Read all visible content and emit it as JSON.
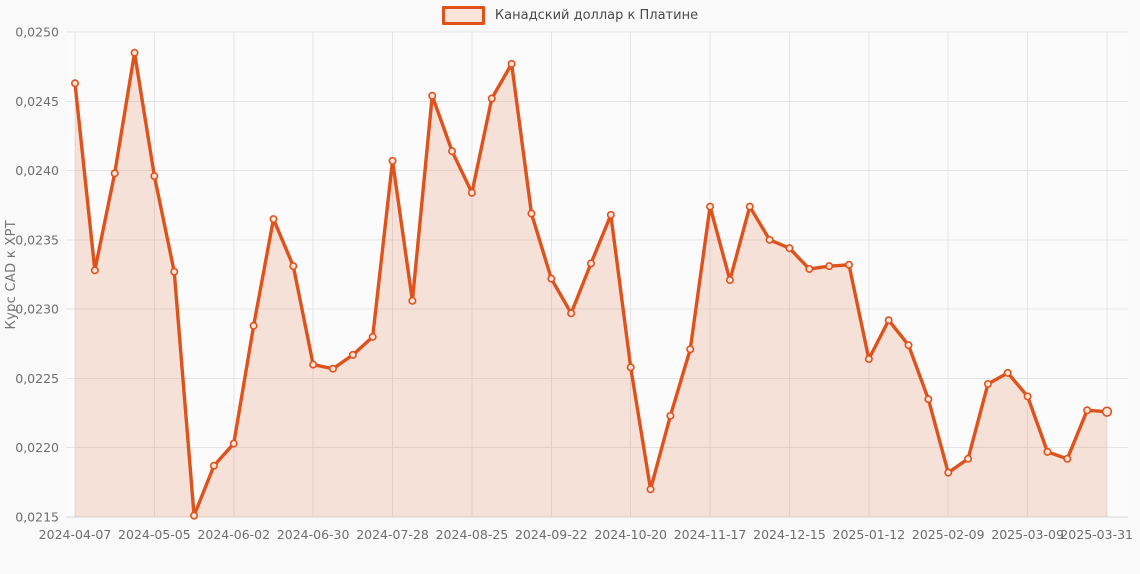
{
  "legend": {
    "label": "Канадский доллар к Платине"
  },
  "y_axis": {
    "title": "Курс CAD к XPT"
  },
  "colors": {
    "line": "#E0521C",
    "area_fill": "rgba(224,82,28,0.15)",
    "marker_fill": "#FAE4D9",
    "grid": "#E4E4E4",
    "axis_line": "#D8D8D8",
    "tick_text": "#6E6E6E",
    "axis_title_text": "#757575",
    "legend_text": "#4A4A4A",
    "page_bg": "#F9F9F9",
    "plot_bg": "#FBFBFB"
  },
  "chart_data": {
    "type": "area",
    "title": "",
    "xlabel": "",
    "ylabel": "Курс CAD к XPT",
    "grid": true,
    "legend_position": "top-center",
    "ylim": [
      0.0215,
      0.025
    ],
    "y_ticks": [
      {
        "value": 0.0215,
        "label": "0,0215"
      },
      {
        "value": 0.022,
        "label": "0,0220"
      },
      {
        "value": 0.0225,
        "label": "0,0225"
      },
      {
        "value": 0.023,
        "label": "0,0230"
      },
      {
        "value": 0.0235,
        "label": "0,0235"
      },
      {
        "value": 0.024,
        "label": "0,0240"
      },
      {
        "value": 0.0245,
        "label": "0,0245"
      },
      {
        "value": 0.025,
        "label": "0,0250"
      }
    ],
    "x_ticks": [
      {
        "index": 0,
        "label": "2024-04-07"
      },
      {
        "index": 4,
        "label": "2024-05-05"
      },
      {
        "index": 8,
        "label": "2024-06-02"
      },
      {
        "index": 12,
        "label": "2024-06-30"
      },
      {
        "index": 16,
        "label": "2024-07-28"
      },
      {
        "index": 20,
        "label": "2024-08-25"
      },
      {
        "index": 24,
        "label": "2024-09-22"
      },
      {
        "index": 28,
        "label": "2024-10-20"
      },
      {
        "index": 32,
        "label": "2024-11-17"
      },
      {
        "index": 36,
        "label": "2024-12-15"
      },
      {
        "index": 40,
        "label": "2025-01-12"
      },
      {
        "index": 44,
        "label": "2025-02-09"
      },
      {
        "index": 48,
        "label": "2025-03-09"
      },
      {
        "index": 52,
        "label": "2025-03-31"
      }
    ],
    "series": [
      {
        "name": "Канадский доллар к Платине",
        "values": [
          0.02463,
          0.02328,
          0.02398,
          0.02485,
          0.02396,
          0.02327,
          0.02151,
          0.02187,
          0.02203,
          0.02288,
          0.02365,
          0.02331,
          0.0226,
          0.02257,
          0.02267,
          0.0228,
          0.02407,
          0.02306,
          0.02454,
          0.02414,
          0.02384,
          0.02452,
          0.02477,
          0.02369,
          0.02322,
          0.02297,
          0.02333,
          0.02368,
          0.02258,
          0.0217,
          0.02223,
          0.02271,
          0.02374,
          0.02321,
          0.02374,
          0.0235,
          0.02344,
          0.02329,
          0.02331,
          0.02332,
          0.02264,
          0.02292,
          0.02274,
          0.02235,
          0.02182,
          0.02192,
          0.02246,
          0.02254,
          0.02237,
          0.02197,
          0.02192,
          0.02227,
          0.02226
        ]
      }
    ]
  }
}
